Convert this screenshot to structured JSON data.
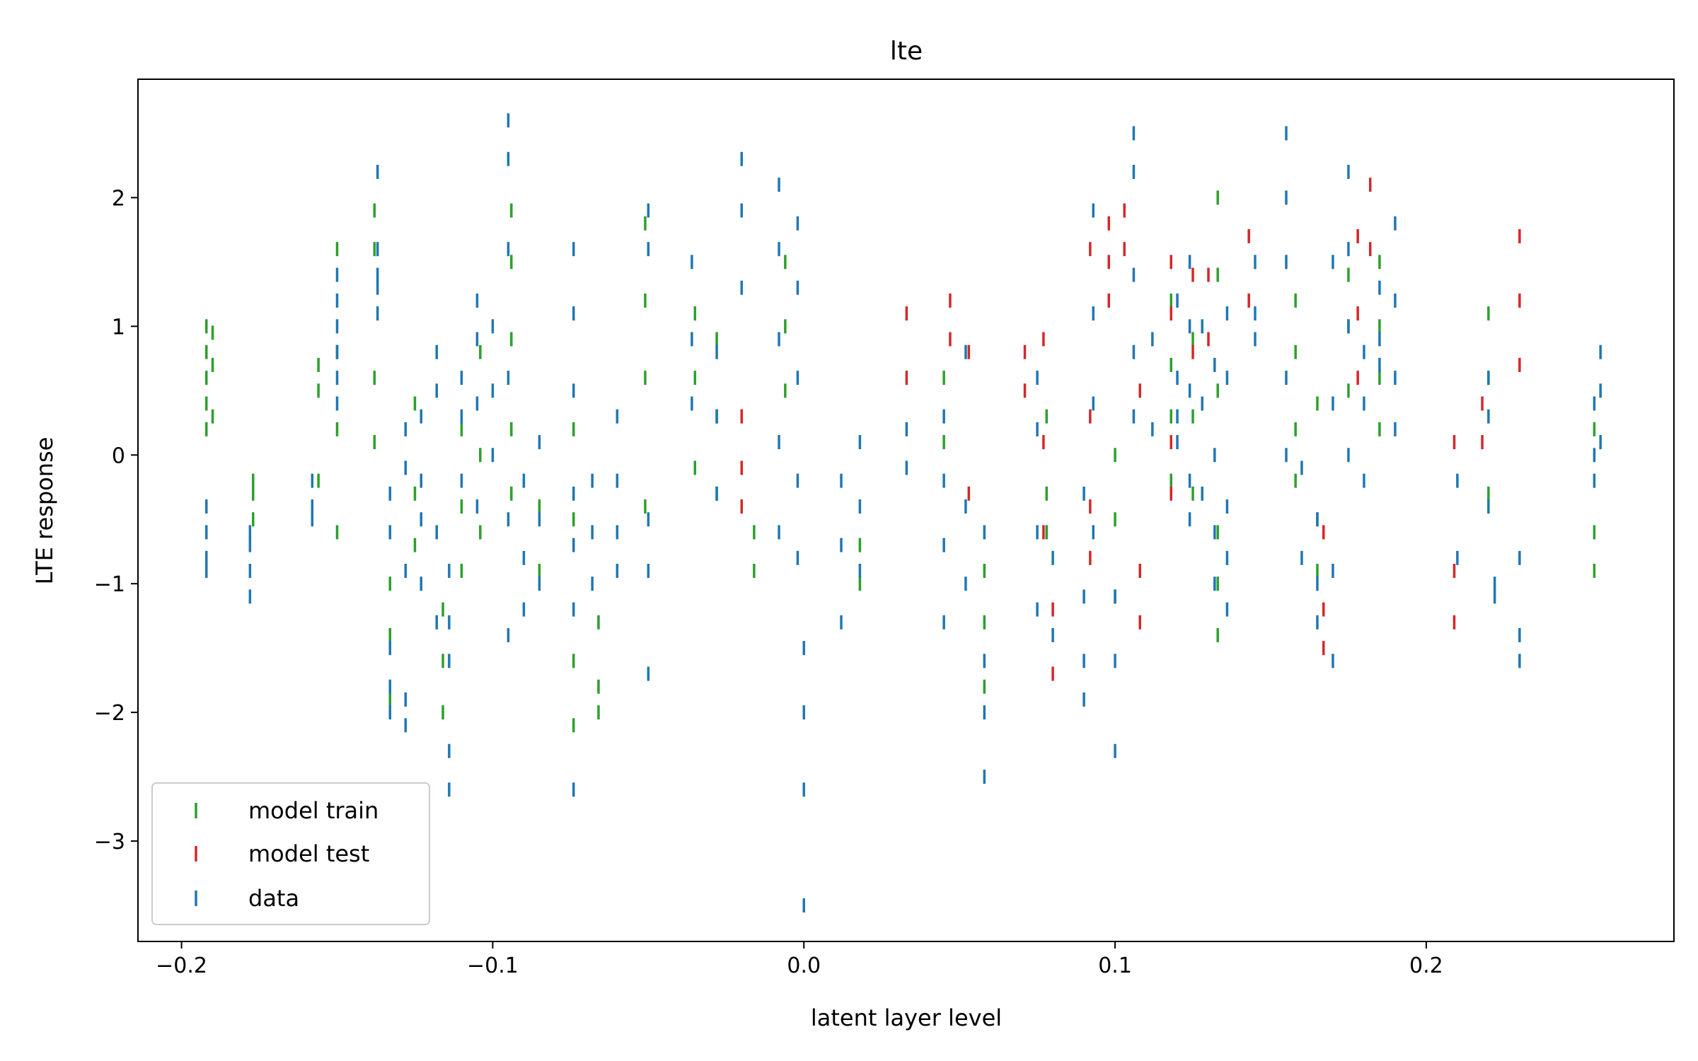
{
  "chart_data": {
    "type": "scatter",
    "title": "lte",
    "xlabel": "latent layer level",
    "ylabel": "LTE response",
    "xlim": [
      -0.214,
      0.2796
    ],
    "ylim": [
      -3.78,
      2.92
    ],
    "xticks": [
      -0.2,
      -0.1,
      0.0,
      0.1,
      0.2
    ],
    "xtick_labels": [
      "−0.2",
      "−0.1",
      "0.0",
      "0.1",
      "0.2"
    ],
    "yticks": [
      -3,
      -2,
      -1,
      0,
      1,
      2
    ],
    "ytick_labels": [
      "−3",
      "−2",
      "−1",
      "0",
      "1",
      "2"
    ],
    "grid": false,
    "legend_position": "lower-left",
    "marker": "|",
    "series": [
      {
        "name": "model train",
        "color": "#2ca02c",
        "columns": [
          [
            -0.192,
            [
              1.0,
              0.8,
              0.6,
              0.4,
              0.2
            ]
          ],
          [
            -0.19,
            [
              0.95,
              0.7,
              0.3
            ]
          ],
          [
            -0.177,
            [
              -0.2,
              -0.3,
              -0.5
            ]
          ],
          [
            -0.156,
            [
              0.7,
              0.5,
              -0.2
            ]
          ],
          [
            -0.15,
            [
              1.6,
              0.8,
              0.2,
              -0.6
            ]
          ],
          [
            -0.138,
            [
              1.9,
              1.6,
              0.6,
              0.1
            ]
          ],
          [
            -0.133,
            [
              -1.0,
              -1.4,
              -1.9
            ]
          ],
          [
            -0.125,
            [
              0.4,
              -0.3,
              -0.7
            ]
          ],
          [
            -0.116,
            [
              -1.2,
              -1.6,
              -2.0
            ]
          ],
          [
            -0.11,
            [
              0.2,
              -0.4,
              -0.9
            ]
          ],
          [
            -0.104,
            [
              0.8,
              0.0,
              -0.6
            ]
          ],
          [
            -0.094,
            [
              1.9,
              1.5,
              0.9,
              0.2,
              -0.3
            ]
          ],
          [
            -0.085,
            [
              -0.4,
              -0.9
            ]
          ],
          [
            -0.074,
            [
              0.2,
              -0.5,
              -1.6,
              -2.1
            ]
          ],
          [
            -0.066,
            [
              -1.3,
              -1.8,
              -2.0
            ]
          ],
          [
            -0.051,
            [
              1.8,
              1.2,
              0.6,
              -0.4
            ]
          ],
          [
            -0.035,
            [
              1.1,
              0.6,
              -0.1
            ]
          ],
          [
            -0.028,
            [
              0.9,
              0.3,
              -0.3
            ]
          ],
          [
            -0.016,
            [
              -0.6,
              -0.9
            ]
          ],
          [
            -0.006,
            [
              1.5,
              1.0,
              0.5
            ]
          ],
          [
            0.018,
            [
              -0.7,
              -1.0
            ]
          ],
          [
            0.045,
            [
              0.6,
              0.1
            ]
          ],
          [
            0.058,
            [
              -0.9,
              -1.3,
              -1.8
            ]
          ],
          [
            0.078,
            [
              0.3,
              -0.3,
              -0.6
            ]
          ],
          [
            0.1,
            [
              0.0,
              -0.5,
              -1.1
            ]
          ],
          [
            0.118,
            [
              1.2,
              0.7,
              0.3,
              -0.2
            ]
          ],
          [
            0.125,
            [
              0.9,
              0.3,
              -0.3
            ]
          ],
          [
            0.133,
            [
              2.0,
              1.4,
              0.5,
              -0.6,
              -1.0,
              -1.4
            ]
          ],
          [
            0.158,
            [
              1.2,
              0.8,
              0.2,
              -0.2
            ]
          ],
          [
            0.165,
            [
              0.4,
              -0.5,
              -0.9
            ]
          ],
          [
            0.175,
            [
              1.4,
              1.0,
              0.5
            ]
          ],
          [
            0.185,
            [
              1.5,
              1.0,
              0.6,
              0.2
            ]
          ],
          [
            0.22,
            [
              1.1,
              0.6,
              -0.3
            ]
          ],
          [
            0.254,
            [
              0.2,
              -0.6,
              -0.9
            ]
          ]
        ]
      },
      {
        "name": "model test",
        "color": "#d62728",
        "columns": [
          [
            -0.02,
            [
              0.3,
              -0.1,
              -0.4
            ]
          ],
          [
            0.033,
            [
              1.1,
              0.6
            ]
          ],
          [
            0.047,
            [
              1.2,
              0.9
            ]
          ],
          [
            0.053,
            [
              0.8,
              -0.3
            ]
          ],
          [
            0.071,
            [
              0.8,
              0.5
            ]
          ],
          [
            0.077,
            [
              0.9,
              0.1,
              -0.6
            ]
          ],
          [
            0.08,
            [
              -1.2,
              -1.7
            ]
          ],
          [
            0.092,
            [
              1.6,
              0.3,
              -0.4,
              -0.8
            ]
          ],
          [
            0.098,
            [
              1.8,
              1.5,
              1.2
            ]
          ],
          [
            0.103,
            [
              1.9,
              1.6
            ]
          ],
          [
            0.108,
            [
              0.5,
              -0.9,
              -1.3
            ]
          ],
          [
            0.118,
            [
              1.5,
              1.1,
              0.1,
              -0.3
            ]
          ],
          [
            0.125,
            [
              1.4,
              0.8
            ]
          ],
          [
            0.13,
            [
              1.4,
              0.9
            ]
          ],
          [
            0.143,
            [
              1.7,
              1.2
            ]
          ],
          [
            0.167,
            [
              -0.6,
              -1.2,
              -1.5
            ]
          ],
          [
            0.178,
            [
              1.7,
              1.1,
              0.6
            ]
          ],
          [
            0.182,
            [
              2.1,
              1.6
            ]
          ],
          [
            0.209,
            [
              0.1,
              -0.9,
              -1.3
            ]
          ],
          [
            0.218,
            [
              0.4,
              0.1
            ]
          ],
          [
            0.23,
            [
              1.7,
              1.2,
              0.7
            ]
          ]
        ]
      },
      {
        "name": "data",
        "color": "#1f77b4",
        "columns": [
          [
            -0.192,
            [
              -0.4,
              -0.6,
              -0.8,
              -0.9
            ]
          ],
          [
            -0.178,
            [
              -0.6,
              -0.7,
              -0.9,
              -1.1
            ]
          ],
          [
            -0.158,
            [
              -0.2,
              -0.4,
              -0.5
            ]
          ],
          [
            -0.15,
            [
              0.4,
              0.8,
              1.0,
              1.2,
              1.4,
              0.6
            ]
          ],
          [
            -0.137,
            [
              1.1,
              1.4,
              1.6,
              2.2,
              1.3
            ]
          ],
          [
            -0.133,
            [
              -0.3,
              -1.5,
              -1.8,
              -2.0,
              -0.6
            ]
          ],
          [
            -0.128,
            [
              -0.1,
              -0.9,
              -1.9,
              -2.1,
              0.2
            ]
          ],
          [
            -0.123,
            [
              0.3,
              -0.2,
              -0.5,
              -1.0
            ]
          ],
          [
            -0.118,
            [
              0.8,
              0.5,
              -0.6,
              -1.3
            ]
          ],
          [
            -0.114,
            [
              -0.9,
              -1.3,
              -1.6,
              -2.3,
              -2.6
            ]
          ],
          [
            -0.11,
            [
              0.6,
              0.3,
              -0.2
            ]
          ],
          [
            -0.105,
            [
              1.2,
              0.9,
              0.4,
              -0.4
            ]
          ],
          [
            -0.1,
            [
              1.0,
              0.5,
              0.0
            ]
          ],
          [
            -0.095,
            [
              2.6,
              2.3,
              1.6,
              0.6,
              -0.5,
              -1.4
            ]
          ],
          [
            -0.09,
            [
              -0.2,
              -0.8,
              -1.2
            ]
          ],
          [
            -0.085,
            [
              0.1,
              -0.5,
              -1.0
            ]
          ],
          [
            -0.074,
            [
              1.6,
              1.1,
              0.5,
              -0.3,
              -0.7,
              -1.2,
              -2.6
            ]
          ],
          [
            -0.068,
            [
              -0.2,
              -0.6,
              -1.0
            ]
          ],
          [
            -0.06,
            [
              0.3,
              -0.2,
              -0.6,
              -0.9
            ]
          ],
          [
            -0.05,
            [
              1.9,
              1.6,
              -0.5,
              -0.9,
              -1.7
            ]
          ],
          [
            -0.036,
            [
              1.5,
              0.9,
              0.4
            ]
          ],
          [
            -0.028,
            [
              0.8,
              0.3,
              -0.3
            ]
          ],
          [
            -0.02,
            [
              2.3,
              1.9,
              1.3
            ]
          ],
          [
            -0.008,
            [
              2.1,
              1.6,
              0.9,
              0.1,
              -0.6
            ]
          ],
          [
            -0.002,
            [
              1.8,
              1.3,
              0.6,
              -0.2,
              -0.8
            ]
          ],
          [
            0.0,
            [
              -1.5,
              -2.0,
              -2.6,
              -3.5
            ]
          ],
          [
            0.012,
            [
              -0.2,
              -0.7,
              -1.3
            ]
          ],
          [
            0.018,
            [
              0.1,
              -0.4,
              -0.9
            ]
          ],
          [
            0.033,
            [
              0.2,
              -0.1
            ]
          ],
          [
            0.045,
            [
              0.3,
              -0.2,
              -0.7,
              -1.3
            ]
          ],
          [
            0.052,
            [
              0.8,
              -0.4,
              -1.0
            ]
          ],
          [
            0.058,
            [
              -0.6,
              -1.6,
              -2.0,
              -2.5
            ]
          ],
          [
            0.075,
            [
              0.6,
              0.2,
              -0.6,
              -1.2
            ]
          ],
          [
            0.08,
            [
              -0.8,
              -1.4
            ]
          ],
          [
            0.09,
            [
              -0.3,
              -1.1,
              -1.6,
              -1.9
            ]
          ],
          [
            0.093,
            [
              1.9,
              1.1,
              0.4,
              -0.6
            ]
          ],
          [
            0.1,
            [
              -1.1,
              -1.6,
              -2.3
            ]
          ],
          [
            0.106,
            [
              2.5,
              2.2,
              1.4,
              0.8,
              0.3
            ]
          ],
          [
            0.112,
            [
              0.9,
              0.2
            ]
          ],
          [
            0.12,
            [
              1.2,
              0.6,
              0.3,
              0.1
            ]
          ],
          [
            0.124,
            [
              1.5,
              1.0,
              0.5,
              -0.2,
              -0.5
            ]
          ],
          [
            0.128,
            [
              1.0,
              0.4,
              -0.3
            ]
          ],
          [
            0.132,
            [
              0.7,
              0.0,
              -0.6,
              -1.0
            ]
          ],
          [
            0.136,
            [
              1.1,
              0.6,
              -0.4,
              -0.8,
              -1.2
            ]
          ],
          [
            0.145,
            [
              1.5,
              1.1,
              0.9
            ]
          ],
          [
            0.155,
            [
              2.5,
              2.0,
              1.5,
              0.6,
              0.0
            ]
          ],
          [
            0.16,
            [
              -0.1,
              -0.8
            ]
          ],
          [
            0.165,
            [
              -0.5,
              -1.0,
              -1.3
            ]
          ],
          [
            0.17,
            [
              1.5,
              0.4,
              -0.9,
              -1.6
            ]
          ],
          [
            0.175,
            [
              2.2,
              1.6,
              1.0,
              0.0
            ]
          ],
          [
            0.18,
            [
              0.8,
              0.4,
              -0.2
            ]
          ],
          [
            0.185,
            [
              1.3,
              0.9,
              0.7
            ]
          ],
          [
            0.19,
            [
              1.8,
              1.2,
              0.6,
              0.2
            ]
          ],
          [
            0.21,
            [
              -0.2,
              -0.8
            ]
          ],
          [
            0.22,
            [
              0.6,
              0.3,
              -0.4
            ]
          ],
          [
            0.222,
            [
              -1.0,
              -1.1
            ]
          ],
          [
            0.23,
            [
              -0.8,
              -1.4,
              -1.6
            ]
          ],
          [
            0.254,
            [
              0.4,
              0.0,
              -0.2
            ]
          ],
          [
            0.256,
            [
              0.8,
              0.5,
              0.1
            ]
          ]
        ]
      }
    ]
  }
}
